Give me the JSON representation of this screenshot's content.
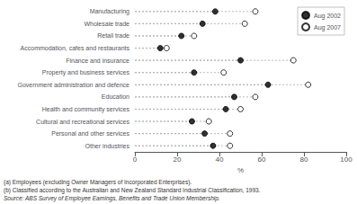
{
  "chart_data": {
    "type": "dot",
    "orientation": "horizontal",
    "categories": [
      "Manufacturing",
      "Wholesale trade",
      "Retail trade",
      "Accommodation, cafes and restaurants",
      "Finance and insurance",
      "Property and business services",
      "Government administration and defence",
      "Education",
      "Health and community services",
      "Cultural and recreational services",
      "Personal and other services",
      "Other industries"
    ],
    "series": [
      {
        "name": "Aug 2002",
        "color": "#000000",
        "marker": "filled",
        "values": [
          38,
          32,
          22,
          12,
          50,
          28,
          63,
          47,
          43,
          27,
          33,
          37
        ]
      },
      {
        "name": "Aug 2007",
        "color": "#000000",
        "marker": "open",
        "values": [
          57,
          52,
          28,
          15,
          75,
          42,
          82,
          57,
          50,
          35,
          45,
          45
        ]
      }
    ],
    "xlabel": "%",
    "xlim": [
      0,
      100
    ],
    "xticks": [
      0,
      20,
      40,
      60,
      80,
      100
    ],
    "grid": false,
    "legend": "upper right",
    "annotations": [
      "(a) Employees (excluding Owner Managers of Incorporated Enterprises).",
      "(b) Classified according to the Australian and New Zealand Standard Industrial Classification, 1993.",
      "Source: ABS Survey of Employee Earnings, Benefits and Trade Union Membership."
    ]
  }
}
